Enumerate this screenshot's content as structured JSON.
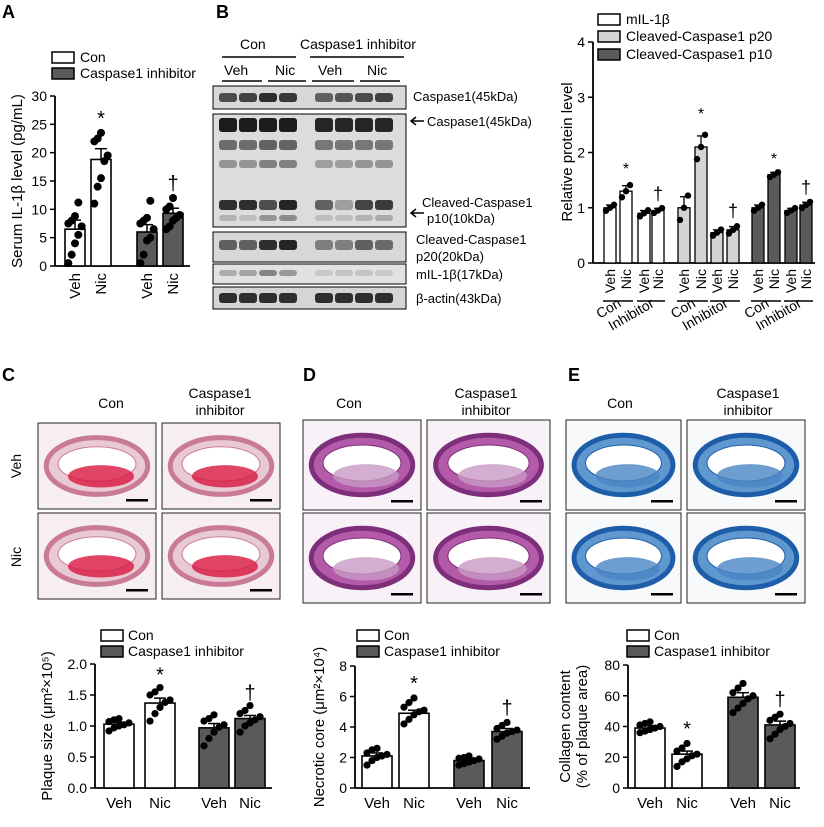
{
  "panel_letters": {
    "a": "A",
    "b": "B",
    "c": "C",
    "d": "D",
    "e": "E"
  },
  "colors": {
    "con": "#ffffff",
    "inhibitor": "#5a5a5a",
    "p20": "#d4d4d4",
    "stroke": "#000000"
  },
  "legend": {
    "con": "Con",
    "inhibitor": "Caspase1 inhibitor"
  },
  "markers": {
    "sig_con": "*",
    "sig_inh": "†"
  },
  "group_labels": {
    "veh": "Veh",
    "nic": "Nic",
    "con": "Con",
    "inhibitor": "Inhibitor",
    "caspase1_inhibitor": "Caspase1 inhibitor",
    "caspase1_line1": "Caspase1",
    "inhibitor_line2": "inhibitor"
  },
  "blot": {
    "band_labels": [
      "Caspase1(45kDa)",
      "Caspase1(45kDa)",
      "Cleaved-Caspase1",
      "p10(10kDa)",
      "Cleaved-Caspase1",
      "p20(20kDa)",
      "mIL-1β(17kDa)",
      "β-actin(43kDa)"
    ]
  },
  "histology": {
    "stains": [
      "oil-red-o",
      "masson-trichrome",
      "alcian-blue"
    ]
  },
  "chart_data": [
    {
      "id": "A",
      "type": "bar",
      "ylabel": "Serum IL-1β level (pg/mL)",
      "ylim": [
        0,
        30
      ],
      "yticks": [
        "0",
        "5",
        "10",
        "15",
        "20",
        "25",
        "30"
      ],
      "categories": [
        "Veh",
        "Nic",
        "Veh",
        "Nic"
      ],
      "groups": [
        "Con",
        "Con",
        "Caspase1 inhibitor",
        "Caspase1 inhibitor"
      ],
      "values": [
        6.5,
        18.8,
        6.0,
        9.3
      ],
      "errors": [
        1.6,
        1.9,
        1.3,
        0.9
      ],
      "points": [
        [
          0.5,
          2.0,
          4.0,
          5.5,
          7.0,
          7.5,
          8.0,
          8.8,
          11.2
        ],
        [
          11.0,
          14.0,
          15.5,
          18.5,
          19.5,
          22.0,
          22.5,
          23.5
        ],
        [
          0.5,
          2.0,
          4.5,
          5.0,
          6.5,
          7.5,
          8.0,
          8.5,
          11.5
        ],
        [
          6.5,
          7.0,
          8.0,
          8.5,
          9.0,
          10.0,
          10.5,
          12.0
        ]
      ],
      "annotations": [
        {
          "category": 1,
          "text": "*"
        },
        {
          "category": 3,
          "text": "†"
        }
      ]
    },
    {
      "id": "B",
      "type": "bar",
      "ylabel": "Relative protein level",
      "ylim": [
        0,
        4
      ],
      "yticks": [
        "0",
        "1",
        "2",
        "3",
        "4"
      ],
      "series": [
        {
          "name": "mIL-1β"
        },
        {
          "name": "Cleaved-Caspase1 p20"
        },
        {
          "name": "Cleaved-Caspase1 p10"
        }
      ],
      "categories": [
        "Veh",
        "Nic",
        "Veh",
        "Nic",
        "Veh",
        "Nic",
        "Veh",
        "Nic",
        "Veh",
        "Nic",
        "Veh",
        "Nic"
      ],
      "group_labels": [
        "Con",
        "Inhibitor",
        "Con",
        "Inhibitor",
        "Con",
        "Inhibitor"
      ],
      "values": [
        1.0,
        1.3,
        0.9,
        0.95,
        1.0,
        2.1,
        0.55,
        0.6,
        1.0,
        1.6,
        0.95,
        1.05
      ],
      "errors": [
        0.05,
        0.1,
        0.05,
        0.04,
        0.2,
        0.2,
        0.05,
        0.06,
        0.05,
        0.04,
        0.04,
        0.05
      ],
      "series_index": [
        0,
        0,
        0,
        0,
        1,
        1,
        1,
        1,
        2,
        2,
        2,
        2
      ],
      "annotations": [
        {
          "category": 1,
          "text": "*"
        },
        {
          "category": 3,
          "text": "†"
        },
        {
          "category": 5,
          "text": "*"
        },
        {
          "category": 7,
          "text": "†"
        },
        {
          "category": 9,
          "text": "*"
        },
        {
          "category": 11,
          "text": "†"
        }
      ]
    },
    {
      "id": "C",
      "type": "bar",
      "ylabel": "Plaque size (μm²×10⁵)",
      "ylim": [
        0,
        2.0
      ],
      "yticks": [
        "0.0",
        "0.5",
        "1.0",
        "1.5",
        "2.0"
      ],
      "categories": [
        "Veh",
        "Nic",
        "Veh",
        "Nic"
      ],
      "groups": [
        "Con",
        "Con",
        "Caspase1 inhibitor",
        "Caspase1 inhibitor"
      ],
      "values": [
        1.03,
        1.37,
        0.97,
        1.12
      ],
      "errors": [
        0.03,
        0.08,
        0.07,
        0.05
      ],
      "points": [
        [
          0.92,
          0.97,
          1.0,
          1.02,
          1.05,
          1.07,
          1.1,
          1.12
        ],
        [
          1.08,
          1.2,
          1.3,
          1.38,
          1.42,
          1.5,
          1.55,
          1.62
        ],
        [
          0.68,
          0.8,
          0.9,
          0.98,
          1.02,
          1.08,
          1.12,
          1.18
        ],
        [
          0.9,
          1.0,
          1.05,
          1.1,
          1.15,
          1.2,
          1.25,
          1.33
        ]
      ],
      "annotations": [
        {
          "category": 1,
          "text": "*"
        },
        {
          "category": 3,
          "text": "†"
        }
      ]
    },
    {
      "id": "D",
      "type": "bar",
      "ylabel": "Necrotic core (μm²×10⁴)",
      "ylim": [
        0,
        8
      ],
      "yticks": [
        "0",
        "2",
        "4",
        "6",
        "8"
      ],
      "categories": [
        "Veh",
        "Nic",
        "Veh",
        "Nic"
      ],
      "groups": [
        "Con",
        "Con",
        "Caspase1 inhibitor",
        "Caspase1 inhibitor"
      ],
      "values": [
        2.1,
        4.9,
        1.8,
        3.7
      ],
      "errors": [
        0.2,
        0.2,
        0.1,
        0.2
      ],
      "points": [
        [
          1.5,
          1.8,
          2.0,
          2.1,
          2.2,
          2.3,
          2.5,
          2.6
        ],
        [
          4.2,
          4.5,
          4.8,
          5.0,
          5.1,
          5.3,
          5.6,
          5.9
        ],
        [
          1.5,
          1.6,
          1.7,
          1.8,
          1.9,
          1.95,
          2.0,
          2.1
        ],
        [
          3.2,
          3.4,
          3.6,
          3.7,
          3.8,
          3.9,
          4.1,
          4.3
        ]
      ],
      "annotations": [
        {
          "category": 1,
          "text": "*"
        },
        {
          "category": 3,
          "text": "†"
        }
      ]
    },
    {
      "id": "E",
      "type": "bar",
      "ylabel_line1": "Collagen content",
      "ylabel_line2": "(% of plaque area)",
      "ylim": [
        0,
        80
      ],
      "yticks": [
        "0",
        "20",
        "40",
        "60",
        "80"
      ],
      "categories": [
        "Veh",
        "Nic",
        "Veh",
        "Nic"
      ],
      "groups": [
        "Con",
        "Con",
        "Caspase1 inhibitor",
        "Caspase1 inhibitor"
      ],
      "values": [
        39,
        22,
        59,
        41
      ],
      "errors": [
        1.5,
        2,
        3,
        2.5
      ],
      "points": [
        [
          36,
          37,
          38,
          39,
          40,
          41,
          42,
          43
        ],
        [
          14,
          17,
          19,
          21,
          22,
          24,
          26,
          29
        ],
        [
          49,
          52,
          55,
          58,
          60,
          62,
          65,
          68
        ],
        [
          32,
          35,
          38,
          40,
          42,
          44,
          46,
          48
        ]
      ],
      "annotations": [
        {
          "category": 1,
          "text": "*"
        },
        {
          "category": 3,
          "text": "†"
        }
      ]
    }
  ]
}
